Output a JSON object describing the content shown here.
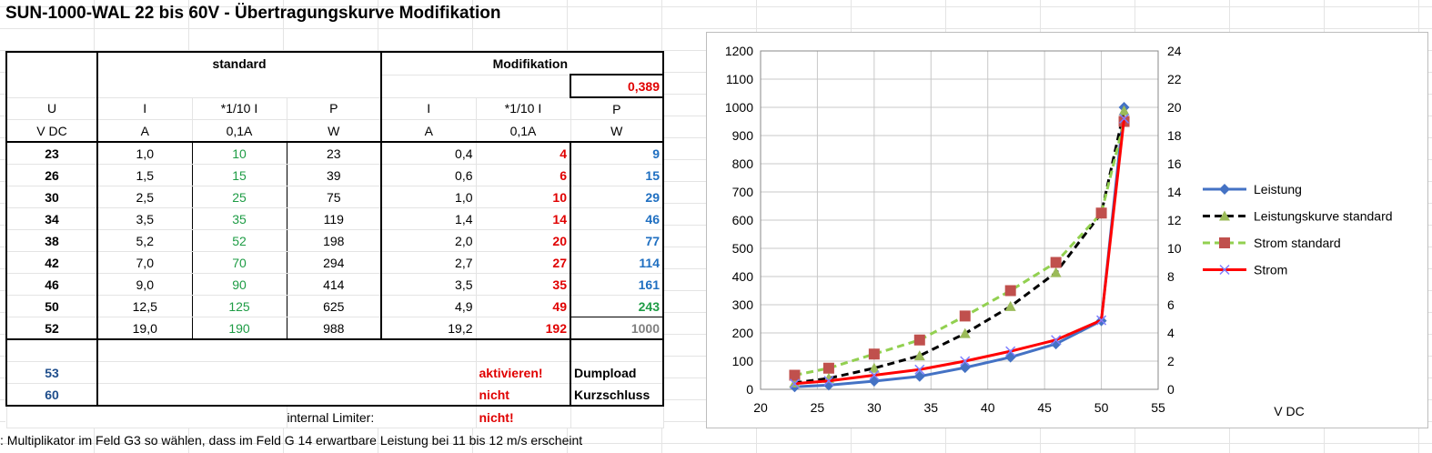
{
  "title": "SUN-1000-WAL 22 bis 60V - Übertragungskurve Modifikation",
  "table": {
    "group_standard": "standard",
    "group_mod": "Modifikation",
    "multiplier": "0,389",
    "header1": [
      "U",
      "I",
      "*1/10 I",
      "P",
      "I",
      "*1/10 I",
      "P"
    ],
    "header2": [
      "V DC",
      "A",
      "0,1A",
      "W",
      "A",
      "0,1A",
      "W"
    ],
    "rows": [
      [
        "23",
        "1,0",
        "10",
        "23",
        "0,4",
        "4",
        "9"
      ],
      [
        "26",
        "1,5",
        "15",
        "39",
        "0,6",
        "6",
        "15"
      ],
      [
        "30",
        "2,5",
        "25",
        "75",
        "1,0",
        "10",
        "29"
      ],
      [
        "34",
        "3,5",
        "35",
        "119",
        "1,4",
        "14",
        "46"
      ],
      [
        "38",
        "5,2",
        "52",
        "198",
        "2,0",
        "20",
        "77"
      ],
      [
        "42",
        "7,0",
        "70",
        "294",
        "2,7",
        "27",
        "114"
      ],
      [
        "46",
        "9,0",
        "90",
        "414",
        "3,5",
        "35",
        "161"
      ],
      [
        "50",
        "12,5",
        "125",
        "625",
        "4,9",
        "49",
        "243"
      ],
      [
        "52",
        "19,0",
        "190",
        "988",
        "19,2",
        "192",
        "1000"
      ]
    ],
    "extra": [
      {
        "u": "53",
        "status": "aktivieren!",
        "label": "Dumpload"
      },
      {
        "u": "60",
        "status": "nicht",
        "label": "Kurzschluss"
      }
    ],
    "limiter_label": "internal Limiter:",
    "limiter_value": "nicht!"
  },
  "note": ": Multiplikator im Feld G3 so wählen, dass im Feld G 14 erwartbare Leistung bei 11 bis 12 m/s erscheint",
  "chart_data": {
    "type": "line",
    "xlabel": "V DC",
    "xlim": [
      20,
      55
    ],
    "x_ticks": [
      20,
      25,
      30,
      35,
      40,
      45,
      50,
      55
    ],
    "ylim_left": [
      0,
      1200
    ],
    "y_ticks_left": [
      0,
      100,
      200,
      300,
      400,
      500,
      600,
      700,
      800,
      900,
      1000,
      1100,
      1200
    ],
    "ylim_right": [
      0,
      24
    ],
    "y_ticks_right": [
      0,
      2,
      4,
      6,
      8,
      10,
      12,
      14,
      16,
      18,
      20,
      22,
      24
    ],
    "grid": true,
    "legend_position": "right",
    "x": [
      23,
      26,
      30,
      34,
      38,
      42,
      46,
      50,
      52
    ],
    "series": [
      {
        "name": "Leistung",
        "axis": "left",
        "values": [
          9,
          15,
          29,
          46,
          77,
          114,
          161,
          243,
          1000
        ],
        "color": "#4472c4",
        "marker": "diamond",
        "dash": "solid"
      },
      {
        "name": "Leistungskurve standard",
        "axis": "left",
        "values": [
          23,
          39,
          75,
          119,
          198,
          294,
          414,
          625,
          988
        ],
        "color": "#000000",
        "marker": "triangle",
        "marker_color": "#9bbb59",
        "dash": "dashed"
      },
      {
        "name": "Strom standard",
        "axis": "right",
        "values": [
          1.0,
          1.5,
          2.5,
          3.5,
          5.2,
          7.0,
          9.0,
          12.5,
          19.0
        ],
        "color": "#92d050",
        "marker": "square",
        "marker_color": "#c0504d",
        "dash": "dashed"
      },
      {
        "name": "Strom",
        "axis": "right",
        "values": [
          0.4,
          0.6,
          1.0,
          1.4,
          2.0,
          2.7,
          3.5,
          4.9,
          19.2
        ],
        "color": "#ff0000",
        "marker": "x",
        "marker_color": "#7f7fff",
        "dash": "solid"
      }
    ]
  }
}
